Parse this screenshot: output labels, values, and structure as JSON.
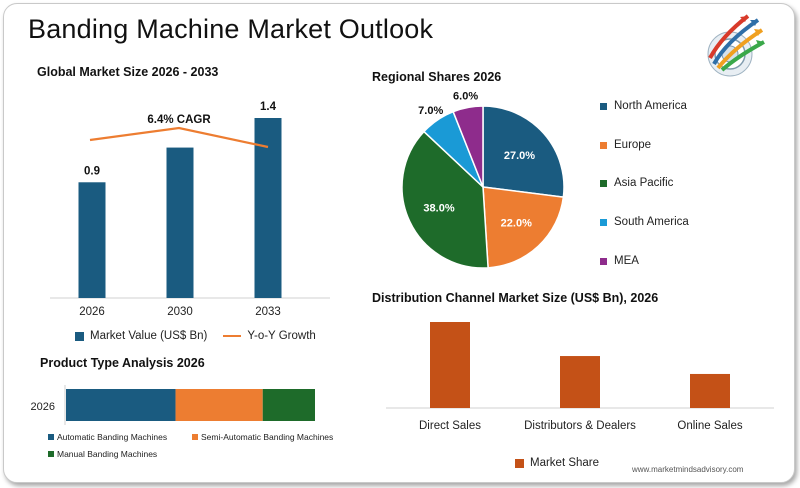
{
  "page": {
    "title": "Banding Machine Market Outlook",
    "watermark": "www.marketmindsadvisory.com"
  },
  "icons": {
    "logo": "target-arrows-logo-icon"
  },
  "colors": {
    "bar": "#1a5b80",
    "growth_line": "#ed7d31",
    "north_america": "#1a5b80",
    "europe": "#ed7d31",
    "asia_pacific": "#1e6b2a",
    "south_america": "#1a9ad6",
    "mea": "#8e2c8c",
    "channel_bar": "#c45117"
  },
  "chart_data": [
    {
      "id": "global",
      "type": "bar",
      "title": "Global Market Size 2026 - 2033",
      "categories": [
        "2026",
        "2030",
        "2033"
      ],
      "series": [
        {
          "name": "Market Value (US$ Bn)",
          "values": [
            0.9,
            null,
            1.4
          ],
          "value_labels": [
            "0.9",
            "",
            "1.4"
          ]
        }
      ],
      "line_series": {
        "name": "Y-o-Y Growth"
      },
      "annotation": "6.4% CAGR",
      "grid": false
    },
    {
      "id": "regional",
      "type": "pie",
      "title": "Regional Shares 2026",
      "slices": [
        {
          "label": "North America",
          "value": 27.0,
          "display": "27.0%"
        },
        {
          "label": "Europe",
          "value": 22.0,
          "display": "22.0%"
        },
        {
          "label": "Asia Pacific",
          "value": 38.0,
          "display": "38.0%"
        },
        {
          "label": "South America",
          "value": 7.0,
          "display": "7.0%"
        },
        {
          "label": "MEA",
          "value": 6.0,
          "display": "6.0%"
        }
      ],
      "legend_position": "right"
    },
    {
      "id": "product",
      "type": "bar",
      "orientation": "horizontal-stacked",
      "title": "Product Type Analysis 2026",
      "categories": [
        "2026"
      ],
      "series": [
        {
          "name": "Automatic Banding Machines",
          "values": [
            44
          ]
        },
        {
          "name": "Semi-Automatic Banding Machines",
          "values": [
            35
          ]
        },
        {
          "name": "Manual Banding Machines",
          "values": [
            21
          ]
        }
      ],
      "legend_position": "bottom"
    },
    {
      "id": "channel",
      "type": "bar",
      "title": "Distribution Channel Market Size (US$ Bn), 2026",
      "categories": [
        "Direct Sales",
        "Distributors & Dealers",
        "Online Sales"
      ],
      "series": [
        {
          "name": "Market Share",
          "values": [
            0.48,
            0.29,
            0.19
          ]
        }
      ],
      "legend_position": "bottom"
    }
  ]
}
